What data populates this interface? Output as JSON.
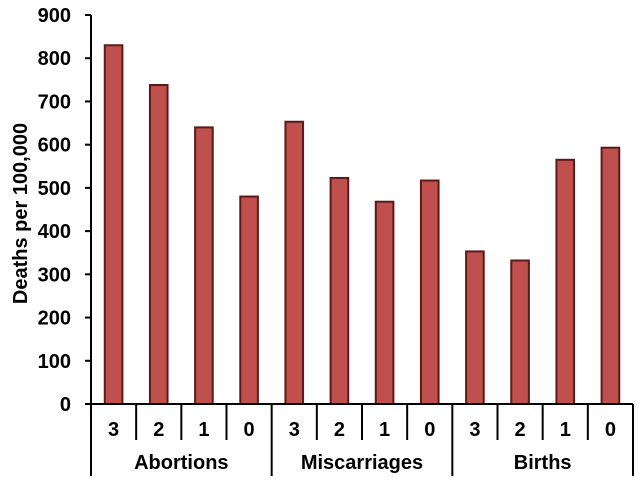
{
  "chart_data": {
    "type": "bar",
    "ylabel": "Deaths per 100,000",
    "ylim": [
      0,
      900
    ],
    "yticks": [
      "0",
      "100",
      "200",
      "300",
      "400",
      "500",
      "600",
      "700",
      "800",
      "900"
    ],
    "grid": false,
    "legend": "none",
    "bar_color": "#c0504d",
    "bar_edge_color": "#5a1a18",
    "groups": [
      {
        "label": "Abortions",
        "categories": [
          "3",
          "2",
          "1",
          "0"
        ],
        "values": [
          830,
          738,
          640,
          480
        ]
      },
      {
        "label": "Miscarriages",
        "categories": [
          "3",
          "2",
          "1",
          "0"
        ],
        "values": [
          653,
          523,
          468,
          517
        ]
      },
      {
        "label": "Births",
        "categories": [
          "3",
          "2",
          "1",
          "0"
        ],
        "values": [
          353,
          332,
          565,
          593
        ]
      }
    ]
  }
}
